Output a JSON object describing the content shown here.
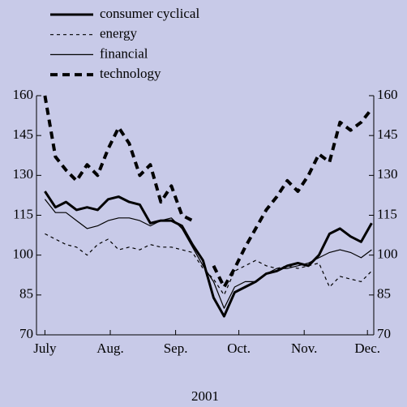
{
  "chart_data": {
    "type": "line",
    "x_label": "2001",
    "x": [
      0,
      5,
      10,
      15,
      20,
      25,
      30,
      35,
      40,
      45,
      50,
      55,
      60,
      65,
      70,
      75,
      80,
      85,
      90,
      95,
      100,
      105,
      110,
      115,
      120,
      125,
      130,
      135,
      140,
      145,
      150,
      155
    ],
    "series": [
      {
        "name": "consumer cyclical",
        "color": "#000000",
        "width": 3,
        "dash": "none",
        "values": [
          124,
          118,
          120,
          117,
          118,
          117,
          121,
          122,
          120,
          119,
          112,
          113,
          113,
          111,
          104,
          98,
          84,
          77,
          86,
          88,
          90,
          93,
          94,
          96,
          97,
          96,
          100,
          108,
          110,
          107,
          105,
          112
        ]
      },
      {
        "name": "energy",
        "color": "#000000",
        "width": 1.2,
        "dash": "4 4",
        "values": [
          108,
          106,
          104,
          103,
          100,
          104,
          106,
          102,
          103,
          102,
          104,
          103,
          103,
          102,
          101,
          95,
          91,
          85,
          94,
          96,
          98,
          96,
          95,
          96,
          95,
          96,
          97,
          88,
          92,
          91,
          90,
          94
        ]
      },
      {
        "name": "financial",
        "color": "#000000",
        "width": 1.2,
        "dash": "none",
        "values": [
          121,
          116,
          116,
          113,
          110,
          111,
          113,
          114,
          114,
          113,
          111,
          113,
          114,
          110,
          103,
          96,
          90,
          80,
          88,
          90,
          90,
          93,
          95,
          95,
          96,
          97,
          99,
          101,
          102,
          101,
          99,
          102
        ]
      },
      {
        "name": "technology",
        "color": "#000000",
        "width": 4,
        "dash": "9 6",
        "values": [
          160,
          137,
          132,
          128,
          134,
          130,
          140,
          148,
          142,
          130,
          134,
          120,
          126,
          115,
          113,
          null,
          96,
          88,
          95,
          103,
          110,
          117,
          122,
          128,
          124,
          130,
          138,
          135,
          150,
          147,
          150,
          155
        ]
      }
    ],
    "xlim": [
      -4,
      156
    ],
    "xticks": [
      {
        "value": 0,
        "label": "July"
      },
      {
        "value": 31,
        "label": "Aug."
      },
      {
        "value": 62,
        "label": "Sep."
      },
      {
        "value": 92,
        "label": "Oct."
      },
      {
        "value": 123,
        "label": "Nov."
      },
      {
        "value": 153,
        "label": "Dec."
      }
    ],
    "ylim": [
      70,
      160
    ],
    "yticks": [
      70,
      85,
      100,
      115,
      130,
      145,
      160
    ],
    "y2lim": [
      70,
      160
    ],
    "y2ticks": [
      70,
      85,
      100,
      115,
      130,
      145,
      160
    ],
    "legend": "top-left"
  }
}
